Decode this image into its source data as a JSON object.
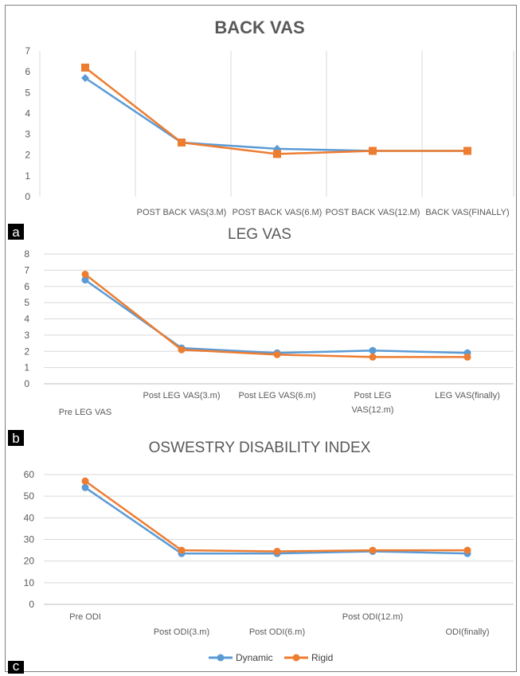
{
  "colors": {
    "dynamic": "#5b9bd5",
    "rigid": "#ed7d31",
    "grid": "#d9d9d9",
    "text": "#595959",
    "label_bg": "#000000"
  },
  "legend": {
    "position": "bottom",
    "entries": [
      "Dynamic",
      "Rigid"
    ]
  },
  "chart_data": [
    {
      "type": "line",
      "panel_label": "a",
      "title": "BACK VAS",
      "categories": [
        "",
        "POST BACK VAS(3.M)",
        "POST BACK VAS(6.M)",
        "POST BACK VAS(12.M)",
        "BACK VAS(FINALLY)"
      ],
      "ylim": [
        0,
        7
      ],
      "yticks": [
        0,
        1,
        2,
        3,
        4,
        5,
        6,
        7
      ],
      "grid": "vertical",
      "series": [
        {
          "name": "Dynamic",
          "marker": "diamond",
          "values": [
            5.7,
            2.6,
            2.3,
            2.2,
            2.2
          ]
        },
        {
          "name": "Rigid",
          "marker": "square",
          "values": [
            6.2,
            2.6,
            2.05,
            2.2,
            2.2
          ]
        }
      ]
    },
    {
      "type": "line",
      "panel_label": "b",
      "title": "LEG VAS",
      "categories": [
        "Pre LEG VAS",
        "Post LEG VAS(3.m)",
        "Post LEG VAS(6.m)",
        "Post LEG VAS(12.m)",
        "LEG VAS(finally)"
      ],
      "ylim": [
        0,
        8
      ],
      "yticks": [
        0,
        1,
        2,
        3,
        4,
        5,
        6,
        7,
        8
      ],
      "grid": "horizontal",
      "series": [
        {
          "name": "Dynamic",
          "marker": "circle",
          "values": [
            6.4,
            2.2,
            1.9,
            2.05,
            1.9
          ]
        },
        {
          "name": "Rigid",
          "marker": "circle",
          "values": [
            6.75,
            2.1,
            1.8,
            1.65,
            1.65
          ]
        }
      ]
    },
    {
      "type": "line",
      "panel_label": "c",
      "title": "OSWESTRY DISABILITY INDEX",
      "categories": [
        "Pre ODI",
        "Post ODI(3.m)",
        "Post ODI(6.m)",
        "Post ODI(12.m)",
        "ODI(finally)"
      ],
      "ylim": [
        0,
        60
      ],
      "yticks": [
        0,
        10,
        20,
        30,
        40,
        50,
        60
      ],
      "grid": "horizontal",
      "series": [
        {
          "name": "Dynamic",
          "marker": "circle",
          "values": [
            54,
            23.5,
            23.5,
            24.5,
            23.5
          ]
        },
        {
          "name": "Rigid",
          "marker": "circle",
          "values": [
            57,
            25,
            24.5,
            25,
            25
          ]
        }
      ]
    }
  ]
}
